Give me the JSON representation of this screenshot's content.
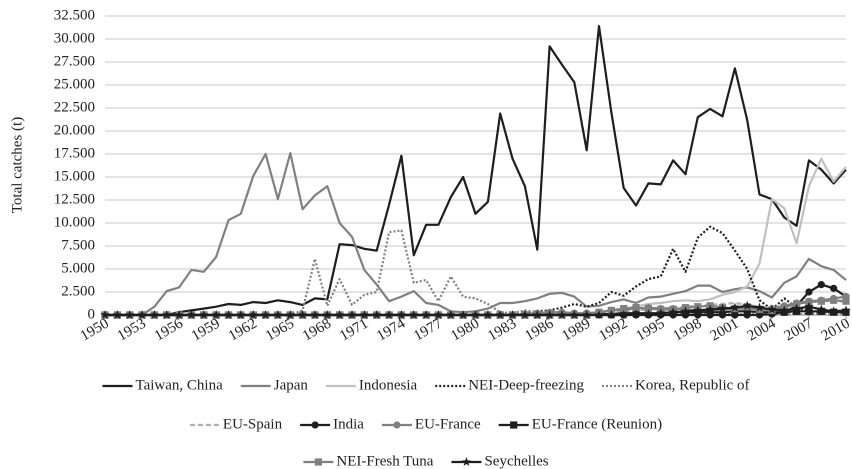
{
  "chart_data": {
    "type": "line",
    "y_label": "Total catches (t)",
    "x": [
      1950,
      1951,
      1952,
      1953,
      1954,
      1955,
      1956,
      1957,
      1958,
      1959,
      1960,
      1961,
      1962,
      1963,
      1964,
      1965,
      1966,
      1967,
      1968,
      1969,
      1970,
      1971,
      1972,
      1973,
      1974,
      1975,
      1976,
      1977,
      1978,
      1979,
      1980,
      1981,
      1982,
      1983,
      1984,
      1985,
      1986,
      1987,
      1988,
      1989,
      1990,
      1991,
      1992,
      1993,
      1994,
      1995,
      1996,
      1997,
      1998,
      1999,
      2000,
      2001,
      2002,
      2003,
      2004,
      2005,
      2006,
      2007,
      2008,
      2009,
      2010
    ],
    "xlim": [
      1950,
      2010
    ],
    "xticks": [
      1950,
      1953,
      1956,
      1959,
      1962,
      1965,
      1968,
      1971,
      1974,
      1977,
      1980,
      1983,
      1986,
      1989,
      1992,
      1995,
      1998,
      2001,
      2004,
      2007,
      2010
    ],
    "ylim": [
      0,
      32500
    ],
    "yticks": [
      0,
      {
        "value": 2500,
        "label": "2.500"
      },
      {
        "value": 5000,
        "label": "5.000"
      },
      {
        "value": 7500,
        "label": "7.500"
      },
      {
        "value": 10000,
        "label": "10.000"
      },
      {
        "value": 12500,
        "label": "12.500"
      },
      {
        "value": 15000,
        "label": "15.000"
      },
      {
        "value": 17500,
        "label": "17.500"
      },
      {
        "value": 20000,
        "label": "20.000"
      },
      {
        "value": 22500,
        "label": "22.500"
      },
      {
        "value": 25000,
        "label": "25.000"
      },
      {
        "value": 27500,
        "label": "27.500"
      },
      {
        "value": 30000,
        "label": "30.000"
      },
      {
        "value": 32500,
        "label": "32.500"
      }
    ],
    "grid": true,
    "legend": "bottom",
    "series": [
      {
        "name": "Taiwan, China",
        "color": "#1e1e1e",
        "dash": "solid",
        "values": [
          0,
          0,
          0,
          0,
          0,
          0,
          300,
          500,
          700,
          900,
          1200,
          1100,
          1400,
          1300,
          1600,
          1400,
          1100,
          1800,
          1700,
          7700,
          7600,
          7200,
          7000,
          12000,
          17300,
          6500,
          9800,
          9800,
          12800,
          15000,
          11000,
          12300,
          21900,
          17000,
          14000,
          7100,
          29200,
          27200,
          25300,
          17900,
          31400,
          22000,
          13800,
          11900,
          14300,
          14200,
          16800,
          15300,
          21500,
          22400,
          21600,
          26800,
          21200,
          13100,
          12600,
          10600,
          9700,
          16800,
          15800,
          14300,
          15800
        ]
      },
      {
        "name": "Japan",
        "color": "#808080",
        "dash": "solid",
        "values": [
          0,
          0,
          0,
          0,
          900,
          2600,
          3000,
          4900,
          4700,
          6300,
          10300,
          11000,
          15100,
          17500,
          12600,
          17600,
          11500,
          13000,
          14000,
          10000,
          8500,
          4900,
          3300,
          1500,
          2000,
          2600,
          1300,
          1100,
          400,
          300,
          400,
          700,
          1300,
          1300,
          1500,
          1800,
          2300,
          2400,
          2000,
          900,
          1000,
          1400,
          1700,
          1300,
          1900,
          2000,
          2300,
          2600,
          3200,
          3200,
          2500,
          2800,
          3000,
          2600,
          1900,
          3500,
          4200,
          6100,
          5300,
          4900,
          3800
        ]
      },
      {
        "name": "Indonesia",
        "color": "#c0c0c0",
        "dash": "solid",
        "values": [
          0,
          0,
          0,
          0,
          0,
          0,
          0,
          0,
          0,
          0,
          0,
          0,
          0,
          0,
          0,
          0,
          0,
          0,
          0,
          0,
          0,
          0,
          0,
          0,
          0,
          0,
          0,
          0,
          0,
          0,
          0,
          0,
          0,
          0,
          100,
          100,
          100,
          200,
          200,
          200,
          300,
          500,
          700,
          900,
          1200,
          1300,
          1500,
          1600,
          1500,
          1700,
          2200,
          2500,
          3100,
          5600,
          12600,
          11600,
          7800,
          14000,
          17000,
          14500,
          16100
        ]
      },
      {
        "name": "NEI-Deep-freezing",
        "color": "#1e1e1e",
        "dash": "dotted",
        "values": [
          0,
          0,
          0,
          0,
          0,
          0,
          0,
          0,
          0,
          0,
          0,
          0,
          0,
          0,
          0,
          0,
          0,
          0,
          0,
          0,
          0,
          0,
          0,
          0,
          0,
          0,
          0,
          0,
          0,
          0,
          0,
          0,
          0,
          0,
          200,
          400,
          500,
          800,
          1200,
          900,
          1300,
          2500,
          2100,
          3100,
          3900,
          4200,
          7200,
          4700,
          8400,
          9600,
          8900,
          7000,
          5000,
          1600,
          600,
          1800,
          800,
          400,
          300,
          300,
          200
        ]
      },
      {
        "name": "Korea, Republic of",
        "color": "#808080",
        "dash": "dotted",
        "values": [
          0,
          0,
          0,
          0,
          0,
          0,
          0,
          0,
          0,
          0,
          0,
          0,
          0,
          0,
          0,
          0,
          500,
          6100,
          1000,
          3900,
          1100,
          2200,
          2500,
          9000,
          9200,
          3500,
          3800,
          1500,
          4200,
          2000,
          1800,
          1200,
          300,
          200,
          500,
          300,
          400,
          200,
          100,
          100,
          100,
          200,
          100,
          100,
          100,
          100,
          100,
          100,
          100,
          100,
          100,
          100,
          100,
          100,
          100,
          100,
          100,
          100,
          100,
          100,
          100
        ]
      },
      {
        "name": "EU-Spain",
        "color": "#b0b0b0",
        "dash": "dashed",
        "values": [
          0,
          0,
          0,
          0,
          0,
          0,
          0,
          0,
          0,
          0,
          0,
          0,
          0,
          0,
          0,
          0,
          0,
          0,
          0,
          0,
          0,
          0,
          0,
          0,
          0,
          0,
          0,
          0,
          0,
          0,
          0,
          0,
          0,
          0,
          100,
          200,
          300,
          300,
          200,
          100,
          200,
          300,
          400,
          500,
          600,
          700,
          800,
          900,
          1000,
          1100,
          1200,
          1300,
          1100,
          900,
          800,
          1000,
          1200,
          1500,
          1600,
          1400,
          1500
        ]
      },
      {
        "name": "India",
        "color": "#1e1e1e",
        "dash": "solid",
        "marker": "circle",
        "values": [
          0,
          0,
          0,
          0,
          0,
          0,
          0,
          0,
          0,
          0,
          0,
          0,
          0,
          0,
          0,
          0,
          0,
          0,
          0,
          0,
          0,
          0,
          0,
          0,
          0,
          0,
          0,
          0,
          0,
          0,
          0,
          0,
          0,
          0,
          0,
          0,
          0,
          0,
          0,
          0,
          0,
          0,
          0,
          0,
          0,
          0,
          0,
          0,
          0,
          0,
          0,
          0,
          0,
          0,
          100,
          300,
          1000,
          2500,
          3300,
          2900,
          2000
        ]
      },
      {
        "name": "EU-France",
        "color": "#808080",
        "dash": "solid",
        "marker": "circle",
        "values": [
          0,
          0,
          0,
          0,
          0,
          0,
          0,
          0,
          0,
          0,
          0,
          0,
          0,
          0,
          0,
          0,
          0,
          0,
          0,
          0,
          0,
          0,
          0,
          0,
          0,
          0,
          0,
          0,
          0,
          0,
          0,
          0,
          0,
          0,
          100,
          200,
          300,
          300,
          200,
          200,
          300,
          500,
          600,
          700,
          800,
          700,
          700,
          600,
          500,
          500,
          600,
          700,
          700,
          600,
          700,
          1000,
          1300,
          1500,
          1600,
          1800,
          2000
        ]
      },
      {
        "name": "EU-France (Reunion)",
        "color": "#1e1e1e",
        "dash": "solid",
        "marker": "square",
        "values": [
          0,
          0,
          0,
          0,
          0,
          0,
          0,
          0,
          0,
          0,
          0,
          0,
          0,
          0,
          0,
          0,
          0,
          0,
          0,
          0,
          0,
          0,
          0,
          0,
          0,
          0,
          0,
          0,
          0,
          0,
          0,
          0,
          0,
          0,
          0,
          0,
          0,
          0,
          0,
          0,
          100,
          100,
          200,
          200,
          200,
          200,
          300,
          300,
          300,
          300,
          300,
          400,
          400,
          300,
          300,
          300,
          400,
          400,
          400,
          300,
          300
        ]
      },
      {
        "name": "NEI-Fresh Tuna",
        "color": "#808080",
        "dash": "solid",
        "marker": "square",
        "values": [
          0,
          0,
          0,
          0,
          0,
          0,
          0,
          0,
          0,
          0,
          0,
          0,
          0,
          0,
          0,
          0,
          0,
          0,
          0,
          0,
          0,
          0,
          0,
          0,
          0,
          0,
          0,
          0,
          0,
          0,
          0,
          0,
          0,
          0,
          0,
          0,
          0,
          0,
          0,
          0,
          300,
          500,
          700,
          800,
          700,
          600,
          600,
          800,
          900,
          1000,
          800,
          700,
          900,
          600,
          500,
          800,
          1200,
          1400,
          1500,
          1600,
          1500
        ]
      },
      {
        "name": "Seychelles",
        "color": "#1e1e1e",
        "dash": "solid",
        "marker": "star",
        "values": [
          0,
          0,
          0,
          0,
          0,
          0,
          0,
          0,
          0,
          0,
          0,
          0,
          0,
          0,
          0,
          0,
          0,
          0,
          0,
          0,
          0,
          0,
          0,
          0,
          0,
          0,
          0,
          0,
          0,
          0,
          0,
          0,
          0,
          0,
          0,
          0,
          0,
          0,
          0,
          0,
          0,
          0,
          0,
          100,
          100,
          200,
          300,
          400,
          500,
          600,
          700,
          800,
          1000,
          800,
          600,
          500,
          700,
          900,
          600,
          400,
          500
        ]
      }
    ]
  }
}
